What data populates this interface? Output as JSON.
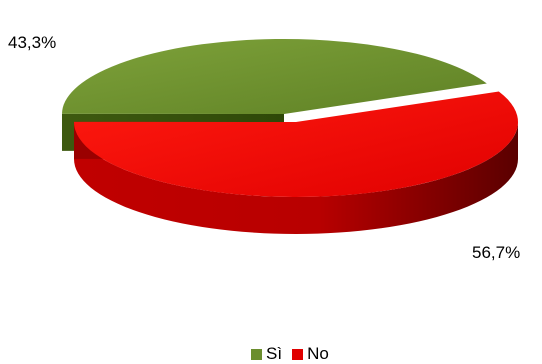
{
  "chart_data": {
    "type": "pie",
    "categories": [
      "Sì",
      "No"
    ],
    "values": [
      43.3,
      56.7
    ],
    "data_labels": [
      "43,3%",
      "56,7%"
    ],
    "colors": [
      "#6b8e2e",
      "#e00000"
    ],
    "legend_position": "bottom",
    "style": "3d"
  }
}
